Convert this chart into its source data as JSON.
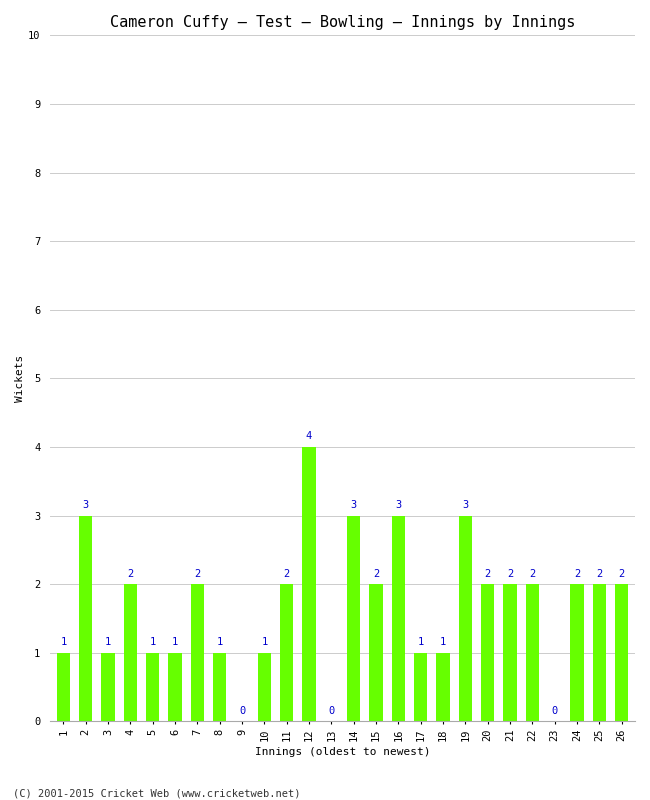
{
  "title": "Cameron Cuffy – Test – Bowling – Innings by Innings",
  "xlabel": "Innings (oldest to newest)",
  "ylabel": "Wickets",
  "wickets": [
    1,
    3,
    1,
    2,
    1,
    1,
    2,
    1,
    0,
    1,
    2,
    4,
    0,
    3,
    2,
    3,
    1,
    1,
    3,
    2,
    2,
    2,
    0,
    2,
    2,
    2
  ],
  "innings": [
    1,
    2,
    3,
    4,
    5,
    6,
    7,
    8,
    9,
    10,
    11,
    12,
    13,
    14,
    15,
    16,
    17,
    18,
    19,
    20,
    21,
    22,
    23,
    24,
    25,
    26
  ],
  "bar_color": "#66ff00",
  "label_color": "#0000cc",
  "ylim": [
    0,
    10
  ],
  "yticks": [
    0,
    1,
    2,
    3,
    4,
    5,
    6,
    7,
    8,
    9,
    10
  ],
  "bg_color": "#ffffff",
  "grid_color": "#cccccc",
  "footer": "(C) 2001-2015 Cricket Web (www.cricketweb.net)",
  "title_fontsize": 11,
  "label_fontsize": 8,
  "tick_fontsize": 7.5,
  "bar_label_fontsize": 7.5,
  "footer_fontsize": 7.5
}
